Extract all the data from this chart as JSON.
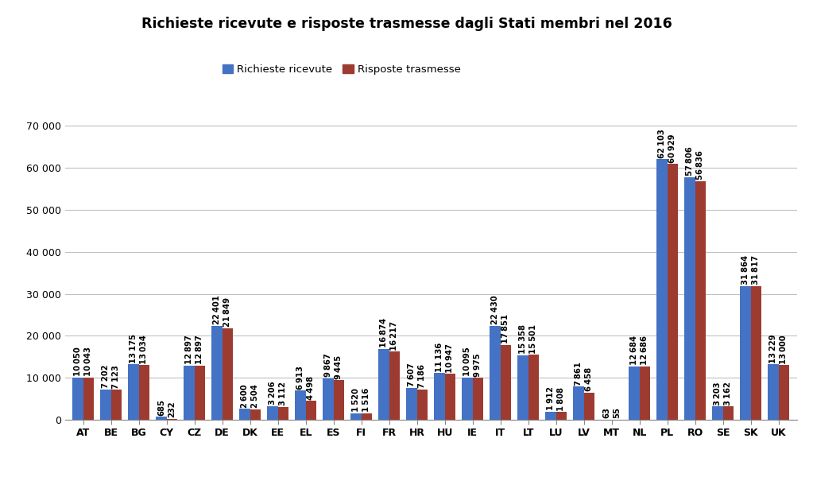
{
  "title": "Richieste ricevute e risposte trasmesse dagli Stati membri nel 2016",
  "legend_labels": [
    "Richieste ricevute",
    "Risposte trasmesse"
  ],
  "categories": [
    "AT",
    "BE",
    "BG",
    "CY",
    "CZ",
    "DE",
    "DK",
    "EE",
    "EL",
    "ES",
    "FI",
    "FR",
    "HR",
    "HU",
    "IE",
    "IT",
    "LT",
    "LU",
    "LV",
    "MT",
    "NL",
    "PL",
    "RO",
    "SE",
    "SK",
    "UK"
  ],
  "received": [
    10050,
    7202,
    13175,
    685,
    12897,
    22401,
    2600,
    3206,
    6913,
    9867,
    1520,
    16874,
    7607,
    11136,
    10095,
    22430,
    15358,
    1912,
    7861,
    63,
    12684,
    62103,
    57806,
    3203,
    31864,
    13229
  ],
  "transmitted": [
    10043,
    7123,
    13034,
    232,
    12897,
    21849,
    2504,
    3112,
    4498,
    9445,
    1516,
    16217,
    7186,
    10947,
    9975,
    17851,
    15501,
    1808,
    6458,
    55,
    12686,
    60929,
    56836,
    3162,
    31817,
    13000
  ],
  "bar_color_received": "#4472C4",
  "bar_color_transmitted": "#9E3B31",
  "background_color": "#FFFFFF",
  "ylim": [
    0,
    75000
  ],
  "yticks": [
    0,
    10000,
    20000,
    30000,
    40000,
    50000,
    60000,
    70000
  ],
  "ytick_labels": [
    "0",
    "10 000",
    "20 000",
    "30 000",
    "40 000",
    "50 000",
    "60 000",
    "70 000"
  ],
  "grid_color": "#C0C0C0",
  "title_fontsize": 12.5,
  "label_fontsize": 7.2,
  "tick_fontsize": 9,
  "legend_fontsize": 9.5,
  "bar_width": 0.38
}
